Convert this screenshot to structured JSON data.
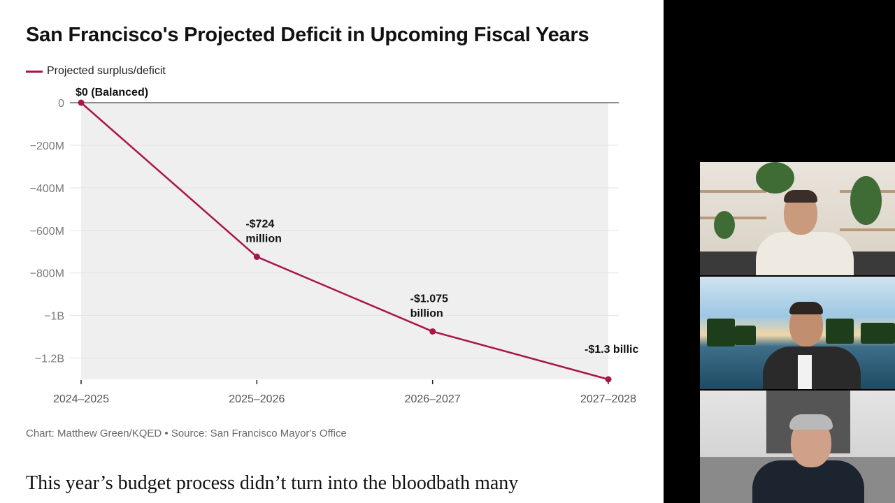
{
  "article": {
    "source_line": "Chart: Matthew Green/KQED • Source: San Francisco Mayor's Office",
    "body_text": "This year’s budget process didn’t turn into the bloodbath many"
  },
  "chart_data": {
    "type": "line",
    "title": "San Francisco's Projected Deficit in Upcoming Fiscal Years",
    "legend": [
      "Projected surplus/deficit"
    ],
    "legend_position": "top-left",
    "grid": true,
    "color": "#a8164a",
    "categories": [
      "2024–2025",
      "2025–2026",
      "2026–2027",
      "2027–2028"
    ],
    "series": [
      {
        "name": "Projected surplus/deficit",
        "values": [
          0,
          -724000000,
          -1075000000,
          -1300000000
        ]
      }
    ],
    "y_ticks": [
      0,
      -200000000,
      -400000000,
      -600000000,
      -800000000,
      -1000000000,
      -1200000000
    ],
    "y_tick_labels": [
      "0",
      "−200M",
      "−400M",
      "−600M",
      "−800M",
      "−1B",
      "−1.2B"
    ],
    "ylim": [
      -1300000000,
      0
    ],
    "annotations": [
      {
        "lines": [
          "$0 (Balanced)"
        ]
      },
      {
        "lines": [
          "-$724",
          "million"
        ]
      },
      {
        "lines": [
          "-$1.075",
          "billion"
        ]
      },
      {
        "lines": [
          "-$1.3 billic"
        ]
      }
    ]
  },
  "video_call": {
    "participants": [
      "participant-1",
      "participant-2",
      "participant-3"
    ]
  }
}
